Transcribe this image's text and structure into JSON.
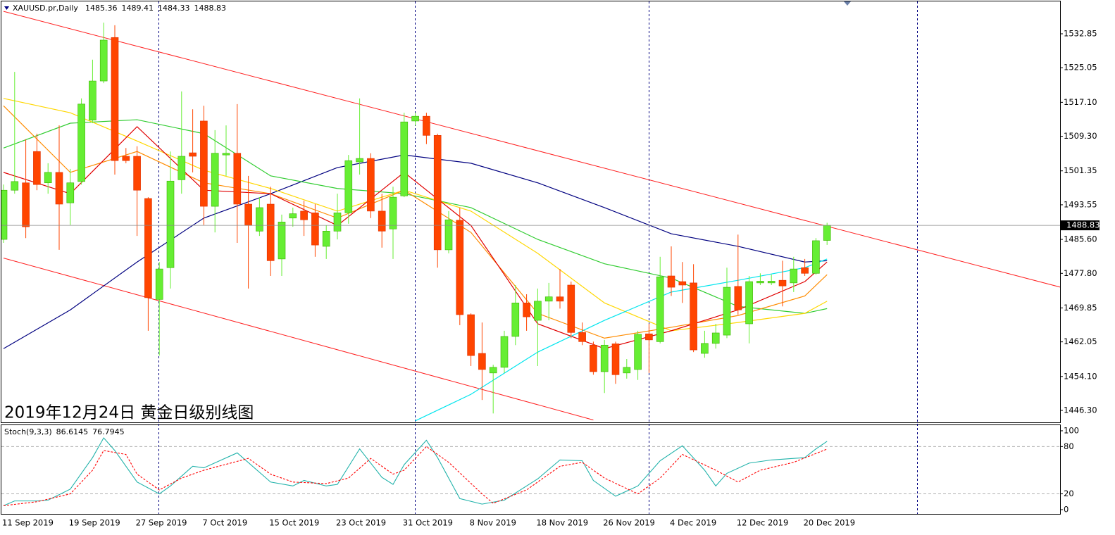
{
  "chart_data": [
    {
      "type": "candlestick",
      "title": "XAUUSD.pr,Daily",
      "annotation": "2019年12月24日 黄金日级别线图",
      "annotation_color": "#1e90ff",
      "up_color": "#66ee33",
      "down_color": "#ff4500",
      "categories": [
        "11 Sep 2019",
        null,
        null,
        null,
        null,
        null,
        "19 Sep 2019",
        null,
        null,
        null,
        null,
        null,
        "27 Sep 2019",
        null,
        null,
        null,
        null,
        null,
        "7 Oct 2019",
        null,
        null,
        null,
        null,
        null,
        "15 Oct 2019",
        null,
        null,
        null,
        null,
        null,
        "23 Oct 2019",
        null,
        null,
        null,
        null,
        null,
        "31 Oct 2019",
        null,
        null,
        null,
        null,
        null,
        "8 Nov 2019",
        null,
        null,
        null,
        null,
        null,
        "18 Nov 2019",
        null,
        null,
        null,
        null,
        null,
        "26 Nov 2019",
        null,
        null,
        null,
        null,
        null,
        "4 Dec 2019",
        null,
        null,
        null,
        null,
        null,
        "12 Dec 2019",
        null,
        null,
        null,
        null,
        null,
        "20 Dec 2019",
        null,
        null
      ],
      "open": [
        1485.6,
        1496.9,
        1498.6,
        1505.8,
        1498.6,
        1501.0,
        1494.0,
        1498.9,
        1513.0,
        1522.0,
        1532.0,
        1504.7,
        1504.7,
        1495.0,
        1471.8,
        1479.1,
        1499.3,
        1505.5,
        1512.8,
        1493.2,
        1505.0,
        1505.4,
        1493.7,
        1487.5,
        1493.7,
        1481.1,
        1490.5,
        1492.1,
        1491.7,
        1484.0,
        1487.5,
        1491.7,
        1503.4,
        1504.2,
        1492.1,
        1488.0,
        1495.6,
        1512.8,
        1513.9,
        1509.5,
        1483.2,
        1490.0,
        1468.3,
        1459.4,
        1454.9,
        1456.2,
        1463.3,
        1471.0,
        1467.0,
        1471.4,
        1472.4,
        1475.1,
        1464.2,
        1461.3,
        1455.2,
        1461.6,
        1454.9,
        1455.7,
        1463.9,
        1462.1,
        1477.2,
        1475.9,
        1475.6,
        1459.4,
        1461.7,
        1463.6,
        1474.8,
        1466.2,
        1475.6,
        1475.6,
        1476.2,
        1475.6,
        1479.1,
        1477.8,
        1485.36
      ],
      "high": [
        1498.2,
        1524.1,
        1508.6,
        1509.9,
        1503.1,
        1511.8,
        1501.8,
        1518.0,
        1526.9,
        1535.4,
        1534.8,
        1506.6,
        1507.0,
        1495.3,
        1480.4,
        1505.8,
        1519.6,
        1515.5,
        1516.3,
        1510.7,
        1511.8,
        1516.7,
        1500.2,
        1495.3,
        1497.7,
        1491.3,
        1492.9,
        1494.5,
        1493.7,
        1488.8,
        1496.1,
        1505.0,
        1518.0,
        1505.4,
        1496.1,
        1497.7,
        1514.7,
        1514.7,
        1514.7,
        1509.9,
        1492.1,
        1492.9,
        1468.6,
        1466.5,
        1456.8,
        1464.6,
        1475.1,
        1473.0,
        1474.3,
        1475.6,
        1478.8,
        1475.9,
        1466.5,
        1462.1,
        1462.5,
        1462.1,
        1458.1,
        1464.6,
        1466.2,
        1481.6,
        1484.0,
        1480.4,
        1479.9,
        1464.6,
        1466.2,
        1479.1,
        1486.7,
        1477.2,
        1477.8,
        1477.5,
        1480.7,
        1481.6,
        1481.1,
        1485.9,
        1489.41
      ],
      "low": [
        1484.8,
        1496.1,
        1485.9,
        1496.9,
        1496.1,
        1483.2,
        1488.9,
        1498.2,
        1512.3,
        1521.5,
        1500.5,
        1503.1,
        1486.4,
        1464.6,
        1458.9,
        1474.3,
        1496.1,
        1501.0,
        1488.9,
        1487.2,
        1500.2,
        1484.8,
        1474.3,
        1486.4,
        1477.2,
        1477.2,
        1488.5,
        1486.4,
        1481.6,
        1481.1,
        1485.6,
        1489.2,
        1500.5,
        1490.5,
        1483.7,
        1481.1,
        1495.3,
        1511.8,
        1507.5,
        1479.1,
        1482.4,
        1465.9,
        1456.5,
        1448.7,
        1445.6,
        1454.9,
        1461.3,
        1464.6,
        1456.5,
        1467.0,
        1469.7,
        1462.9,
        1461.3,
        1454.5,
        1450.3,
        1452.4,
        1453.6,
        1453.3,
        1454.9,
        1461.7,
        1472.6,
        1471.0,
        1459.7,
        1458.4,
        1460.5,
        1462.9,
        1468.3,
        1461.7,
        1475.1,
        1475.1,
        1470.2,
        1473.5,
        1477.2,
        1477.5,
        1484.33
      ],
      "close": [
        1496.9,
        1498.9,
        1488.5,
        1498.2,
        1501.0,
        1493.7,
        1498.6,
        1516.7,
        1522.0,
        1531.4,
        1503.7,
        1503.7,
        1496.9,
        1472.2,
        1478.8,
        1499.0,
        1504.7,
        1504.7,
        1493.2,
        1505.4,
        1505.4,
        1493.7,
        1488.8,
        1492.9,
        1480.7,
        1489.6,
        1491.5,
        1490.1,
        1484.3,
        1487.5,
        1491.7,
        1503.7,
        1504.2,
        1492.1,
        1487.5,
        1495.3,
        1512.6,
        1513.9,
        1509.5,
        1483.2,
        1490.1,
        1468.3,
        1458.9,
        1455.7,
        1456.2,
        1463.3,
        1471.0,
        1467.8,
        1471.4,
        1472.4,
        1471.4,
        1464.2,
        1462.1,
        1455.2,
        1461.3,
        1454.5,
        1456.2,
        1463.8,
        1462.5,
        1477.0,
        1474.6,
        1475.1,
        1460.2,
        1461.7,
        1464.1,
        1474.6,
        1469.4,
        1475.9,
        1476.0,
        1476.0,
        1474.9,
        1478.8,
        1477.8,
        1485.3,
        1488.83
      ],
      "ylim": [
        1443.55,
        1540.29
      ],
      "yticks": [
        1532.85,
        1525.05,
        {
          "value": 1517.1,
          "label": "1517.10"
        },
        {
          "value": 1509.3,
          "label": "1509.30"
        },
        1501.35,
        1493.55,
        {
          "value": 1485.6,
          "label": "1485.60"
        },
        {
          "value": 1477.8,
          "label": "1477.80"
        },
        1469.85,
        1462.05,
        {
          "value": 1454.1,
          "label": "1454.10"
        },
        {
          "value": 1446.3,
          "label": "1446.30"
        }
      ],
      "overlays": [
        {
          "color": "#000080",
          "x": [
            0,
            6,
            12,
            18,
            24,
            30,
            36,
            42,
            48,
            54,
            60,
            66,
            72,
            74
          ],
          "values": [
            1460.5,
            1469.4,
            1480.4,
            1490.5,
            1496.1,
            1502.1,
            1505.0,
            1503.1,
            1498.6,
            1492.9,
            1486.9,
            1484.0,
            1480.4,
            1480.7
          ]
        },
        {
          "color": "#32cd32",
          "x": [
            0,
            6,
            12,
            18,
            24,
            30,
            36,
            42,
            48,
            54,
            60,
            66,
            72,
            74
          ],
          "values": [
            1506.6,
            1512.3,
            1513.1,
            1509.9,
            1500.2,
            1497.3,
            1496.1,
            1492.9,
            1485.6,
            1480.0,
            1476.7,
            1470.2,
            1468.6,
            1469.7
          ]
        },
        {
          "color": "#ffd700",
          "x": [
            0,
            6,
            12,
            18,
            24,
            30,
            36,
            42,
            48,
            54,
            60,
            66,
            72,
            74
          ],
          "values": [
            1518.0,
            1514.7,
            1508.2,
            1501.5,
            1497.3,
            1492.1,
            1496.9,
            1492.1,
            1482.4,
            1471.0,
            1464.6,
            1466.5,
            1468.6,
            1471.4
          ]
        },
        {
          "color": "#ff8c00",
          "x": [
            0,
            6,
            12,
            18,
            24,
            30,
            36,
            42,
            48,
            54,
            60,
            66,
            72,
            74
          ],
          "values": [
            1516.3,
            1501.0,
            1505.8,
            1498.6,
            1496.1,
            1490.5,
            1496.9,
            1487.2,
            1468.6,
            1462.9,
            1465.4,
            1468.1,
            1472.6,
            1477.5
          ]
        },
        {
          "color": "#e00000",
          "x": [
            0,
            6,
            12,
            18,
            24,
            30,
            36,
            42,
            48,
            54,
            60,
            66,
            72,
            74
          ],
          "values": [
            1501.0,
            1496.1,
            1511.5,
            1496.9,
            1496.1,
            1488.8,
            1501.0,
            1488.8,
            1466.2,
            1460.5,
            1464.6,
            1469.4,
            1475.9,
            1480.4
          ]
        },
        {
          "color": "#00e5ee",
          "x": [
            37,
            42,
            48,
            54,
            60,
            66,
            72,
            74
          ],
          "values": [
            1443.9,
            1450.0,
            1459.7,
            1467.0,
            1473.5,
            1476.2,
            1479.1,
            1481.1
          ]
        }
      ],
      "trendlines": [
        {
          "color": "#ff2020",
          "x": [
            0,
            95
          ],
          "values": [
            1538.0,
            1474.6
          ]
        },
        {
          "color": "#ff2020",
          "x": [
            0,
            53
          ],
          "values": [
            1481.3,
            1444.1
          ]
        }
      ]
    },
    {
      "type": "line",
      "title": "Stoch(9,3,3)",
      "ylim": [
        -5.4,
        107.1
      ],
      "yticks": [
        0,
        20,
        80,
        100
      ],
      "levels": [
        20,
        80
      ],
      "series": [
        {
          "color": "#20b2aa",
          "dash": false,
          "x": [
            0,
            1,
            3,
            4,
            6,
            8,
            9,
            10,
            12,
            14,
            15,
            17,
            18,
            21,
            24,
            26,
            27,
            29,
            30,
            32,
            34,
            35,
            36,
            38,
            39,
            41,
            43,
            45,
            48,
            50,
            52,
            53,
            55,
            57,
            59,
            61,
            63,
            64,
            65,
            67,
            69,
            72,
            73,
            74
          ],
          "values": [
            5,
            11,
            11,
            12,
            26,
            66,
            91,
            75,
            35,
            20,
            30,
            55,
            53,
            72,
            35,
            30,
            37,
            30,
            32,
            77,
            41,
            32,
            57,
            88,
            66,
            14,
            7,
            12,
            39,
            63,
            62,
            37,
            17,
            30,
            62,
            81,
            50,
            30,
            46,
            59,
            63,
            66,
            77,
            86.6145
          ]
        },
        {
          "color": "#ff0000",
          "dash": true,
          "x": [
            0,
            3,
            6,
            8,
            9,
            11,
            12,
            14,
            16,
            18,
            22,
            24,
            26,
            29,
            31,
            33,
            35,
            36,
            38,
            40,
            43,
            44,
            47,
            50,
            52,
            54,
            57,
            59,
            61,
            64,
            66,
            68,
            71,
            74
          ],
          "values": [
            5,
            10,
            20,
            50,
            75,
            70,
            45,
            25,
            40,
            50,
            65,
            45,
            35,
            33,
            40,
            65,
            45,
            50,
            80,
            60,
            20,
            8,
            25,
            55,
            60,
            40,
            20,
            40,
            70,
            50,
            35,
            50,
            60,
            76.7945
          ]
        }
      ]
    }
  ]
}
